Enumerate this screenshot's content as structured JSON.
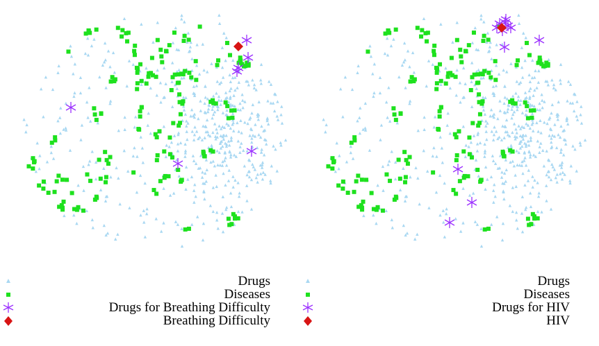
{
  "colors": {
    "drugs": "#a9d8f2",
    "diseases": "#1ee11e",
    "highlight_drugs": "#9b30ff",
    "target_disease": "#d81414"
  },
  "chart_data": [
    {
      "type": "scatter",
      "title": "",
      "legend": {
        "placement": "bottom",
        "entries": [
          {
            "label": "Drugs",
            "marker": "triangle"
          },
          {
            "label": "Diseases",
            "marker": "square"
          },
          {
            "label": "Drugs for Breathing Difficulty",
            "marker": "asterisk"
          },
          {
            "label": "Breathing Difficulty",
            "marker": "diamond"
          }
        ]
      },
      "grid": false,
      "axes_visible": false,
      "highlight_drugs": [
        [
          355,
          58
        ],
        [
          357,
          83
        ],
        [
          341,
          103
        ],
        [
          343,
          98
        ],
        [
          102,
          155
        ],
        [
          362,
          218
        ],
        [
          256,
          236
        ]
      ],
      "target": [
        [
          343,
          67
        ]
      ]
    },
    {
      "type": "scatter",
      "title": "",
      "legend": {
        "placement": "bottom",
        "entries": [
          {
            "label": "Drugs",
            "marker": "triangle"
          },
          {
            "label": "Diseases",
            "marker": "square"
          },
          {
            "label": "Drugs for HIV",
            "marker": "asterisk"
          },
          {
            "label": "HIV",
            "marker": "diamond"
          }
        ]
      },
      "grid": false,
      "axes_visible": false,
      "highlight_drugs": [
        [
          288,
          34
        ],
        [
          296,
          32
        ],
        [
          300,
          37
        ],
        [
          292,
          44
        ],
        [
          304,
          40
        ],
        [
          284,
          40
        ],
        [
          297,
          28
        ],
        [
          345,
          58
        ],
        [
          295,
          68
        ],
        [
          228,
          244
        ],
        [
          248,
          292
        ],
        [
          216,
          321
        ]
      ],
      "target": [
        [
          291,
          40
        ]
      ]
    }
  ]
}
